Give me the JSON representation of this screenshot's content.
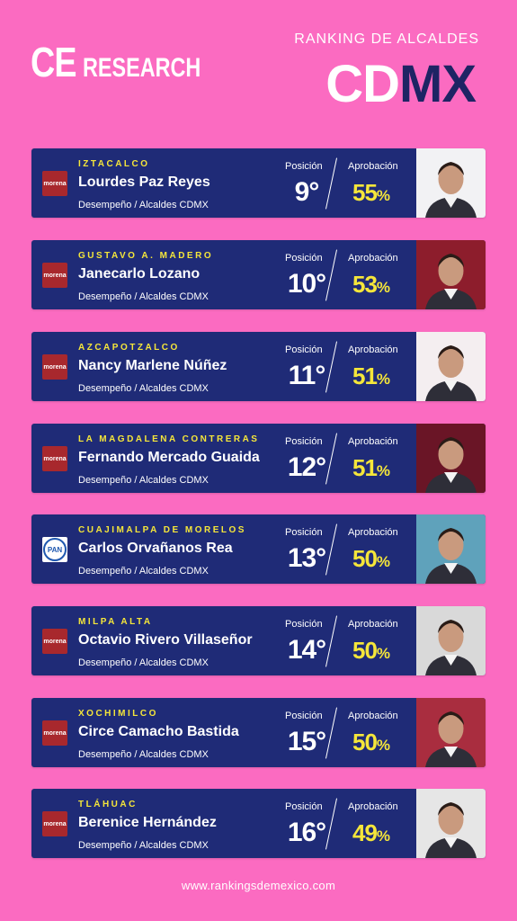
{
  "brand": {
    "logo_ce": "CE",
    "logo_research": "RESEARCH"
  },
  "header": {
    "subtitle": "RANKING DE ALCALDES",
    "title_cd": "CD",
    "title_mx": "MX"
  },
  "labels": {
    "position": "Posición",
    "approval": "Aprobación",
    "percent": "%"
  },
  "entries": [
    {
      "borough": "IZTACALCO",
      "name": "Lourdes Paz Reyes",
      "desc": "Desempeño / Alcaldes CDMX",
      "party": "morena",
      "party_label": "morena",
      "position": "9°",
      "approval": "55",
      "photo_bg": "#f2f2f4"
    },
    {
      "borough": "GUSTAVO A. MADERO",
      "name": "Janecarlo Lozano",
      "desc": "Desempeño / Alcaldes CDMX",
      "party": "morena",
      "party_label": "morena",
      "position": "10°",
      "approval": "53",
      "photo_bg": "#8d1d2c"
    },
    {
      "borough": "AZCAPOTZALCO",
      "name": "Nancy Marlene Núñez",
      "desc": "Desempeño / Alcaldes CDMX",
      "party": "morena",
      "party_label": "morena",
      "position": "11°",
      "approval": "51",
      "photo_bg": "#f4eef0"
    },
    {
      "borough": "LA MAGDALENA CONTRERAS",
      "name": "Fernando Mercado Guaida",
      "desc": "Desempeño / Alcaldes CDMX",
      "party": "morena",
      "party_label": "morena",
      "position": "12°",
      "approval": "51",
      "photo_bg": "#6a1526"
    },
    {
      "borough": "CUAJIMALPA DE MORELOS",
      "name": "Carlos Orvañanos Rea",
      "desc": "Desempeño / Alcaldes CDMX",
      "party": "pan",
      "party_label": "PAN",
      "position": "13°",
      "approval": "50",
      "photo_bg": "#5fa2bb"
    },
    {
      "borough": "MILPA ALTA",
      "name": "Octavio Rivero Villaseñor",
      "desc": "Desempeño / Alcaldes CDMX",
      "party": "morena",
      "party_label": "morena",
      "position": "14°",
      "approval": "50",
      "photo_bg": "#d9d9d9"
    },
    {
      "borough": "XOCHIMILCO",
      "name": "Circe Camacho Bastida",
      "desc": "Desempeño / Alcaldes CDMX",
      "party": "morena",
      "party_label": "morena",
      "position": "15°",
      "approval": "50",
      "photo_bg": "#a92d3f"
    },
    {
      "borough": "TLÁHUAC",
      "name": "Berenice Hernández",
      "desc": "Desempeño / Alcaldes CDMX",
      "party": "morena",
      "party_label": "morena",
      "position": "16°",
      "approval": "49",
      "photo_bg": "#e6e6e6"
    }
  ],
  "footer": {
    "url": "www.rankingsdemexico.com"
  },
  "colors": {
    "background": "#fb6bc1",
    "card": "#1f2b77",
    "accent": "#f5e63a",
    "navy": "#1e2464"
  }
}
